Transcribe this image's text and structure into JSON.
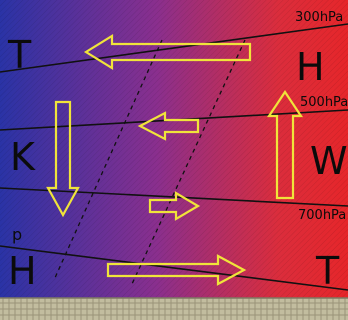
{
  "pressure_levels": [
    "300hPa",
    "500hPa",
    "700hPa"
  ],
  "left_labels": {
    "top": "T",
    "middle": "K",
    "bottom": "H",
    "p": "p"
  },
  "right_labels": {
    "top": "H",
    "middle": "W",
    "bottom": "T"
  },
  "colors": {
    "cold": "#2a35a8",
    "warm": "#e22a2a",
    "arrow": "#f0e43a",
    "line": "#111111",
    "ground": "#bdb89a"
  }
}
